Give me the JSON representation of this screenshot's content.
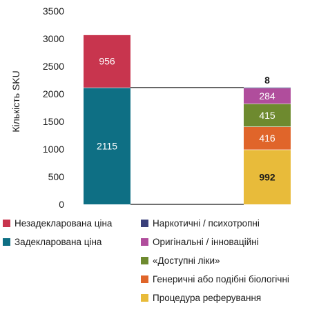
{
  "chart_data": {
    "type": "bar",
    "stacked": true,
    "ylabel": "Кількість SKU",
    "ylim": [
      0,
      3500
    ],
    "yticks": [
      0,
      500,
      1000,
      1500,
      2000,
      2500,
      3000,
      3500
    ],
    "grid": false,
    "bars": [
      {
        "segments": [
          {
            "name": "Задекларована ціна",
            "value": 2115,
            "color": "#0e6f84",
            "label": "2115",
            "label_color": "#ffffff"
          },
          {
            "name": "Незадекларована ціна",
            "value": 956,
            "color": "#c8354e",
            "label": "956",
            "label_color": "#ffffff"
          }
        ]
      },
      {
        "segments": [
          {
            "name": "Процедура реферування",
            "value": 992,
            "color": "#e8bb3a",
            "label": "992",
            "label_color": "#1a1a1a"
          },
          {
            "name": "Генеричні або подібні біологічні",
            "value": 416,
            "color": "#e0652a",
            "label": "416",
            "label_color": "#ffffff"
          },
          {
            "name": "«Доступні ліки»",
            "value": 415,
            "color": "#6e8a2f",
            "label": "415",
            "label_color": "#ffffff"
          },
          {
            "name": "Оригінальні / інноваційні",
            "value": 284,
            "color": "#b04d9c",
            "label": "284",
            "label_color": "#ffffff"
          },
          {
            "name": "Наркотичні / психотропні",
            "value": 8,
            "color": "#3a3f7a",
            "label": "8",
            "label_color": "#1a1a1a"
          }
        ]
      }
    ],
    "legend": {
      "left": [
        {
          "label": "Незадекларована ціна",
          "color": "#c8354e"
        },
        {
          "label": "Задекларована ціна",
          "color": "#0e6f84"
        }
      ],
      "right": [
        {
          "label": "Наркотичні / психотропні",
          "color": "#3a3f7a"
        },
        {
          "label": "Оригінальні / інноваційні",
          "color": "#b04d9c"
        },
        {
          "label": "«Доступні ліки»",
          "color": "#6e8a2f"
        },
        {
          "label": "Генеричні або подібні біологічні",
          "color": "#e0652a"
        },
        {
          "label": "Процедура реферування",
          "color": "#e8bb3a"
        }
      ]
    }
  }
}
